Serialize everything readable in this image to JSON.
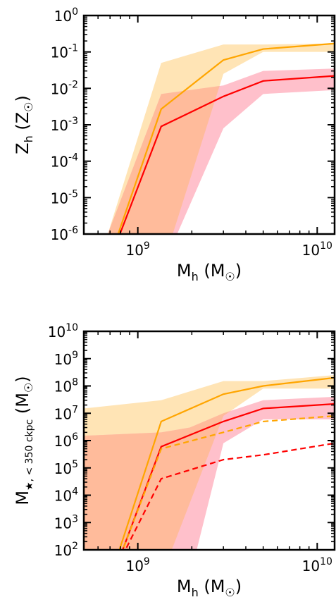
{
  "chart_data": [
    {
      "type": "line",
      "xscale": "log",
      "yscale": "log",
      "xlim": [
        500000000,
        12500000000
      ],
      "ylim": [
        1e-06,
        1
      ],
      "xlabel": "M_h (M_☉)",
      "ylabel": "Z_h (Z_☉)",
      "ytick_exponents": [
        "0",
        "-1",
        "-2",
        "-3",
        "-4",
        "-5",
        "-6"
      ],
      "yticks": [
        1,
        0.1,
        0.01,
        0.001,
        0.0001,
        1e-05,
        1e-06
      ],
      "xtick_exponents": [
        "9",
        "10"
      ],
      "xticks": [
        1000000000,
        10000000000
      ],
      "series": [
        {
          "color": "#ffa500",
          "style": "solid",
          "x": [
            740000000,
            1350000000,
            3000000000,
            5000000000,
            12500000000
          ],
          "y": [
            5e-07,
            0.0027,
            0.06,
            0.12,
            0.17
          ]
        },
        {
          "color": "#ff0000",
          "style": "solid",
          "x": [
            740000000,
            1350000000,
            3000000000,
            5000000000,
            12500000000
          ],
          "y": [
            4e-07,
            0.0009,
            0.006,
            0.016,
            0.022
          ]
        }
      ],
      "bands": [
        {
          "color": "#ffe4b5",
          "x": [
            680000000,
            1350000000,
            3000000000,
            5000000000,
            12500000000
          ],
          "lower": [
            1e-07,
            1e-07,
            0.025,
            0.1,
            0.1
          ],
          "upper": [
            1e-06,
            0.05,
            0.16,
            0.16,
            0.17
          ]
        },
        {
          "color": "#ffc0cb",
          "x": [
            680000000,
            1350000000,
            3000000000,
            5000000000,
            12500000000
          ],
          "lower": [
            1e-07,
            1e-07,
            0.0008,
            0.007,
            0.009
          ],
          "upper": [
            1e-06,
            0.007,
            0.012,
            0.03,
            0.035
          ]
        }
      ],
      "overlap_color": "#ffbb9b"
    },
    {
      "type": "line",
      "xscale": "log",
      "yscale": "log",
      "xlim": [
        500000000,
        12500000000
      ],
      "ylim": [
        100,
        10000000000
      ],
      "xlabel": "M_h (M_☉)",
      "ylabel": "M_★,<350 ckpc (M_☉)",
      "ytick_exponents": [
        "10",
        "9",
        "8",
        "7",
        "6",
        "5",
        "4",
        "3",
        "2"
      ],
      "yticks": [
        10000000000,
        1000000000,
        100000000,
        10000000,
        1000000,
        100000,
        10000,
        1000,
        100
      ],
      "xtick_exponents": [
        "9",
        "10"
      ],
      "xticks": [
        1000000000,
        10000000000
      ],
      "series": [
        {
          "color": "#ffa500",
          "style": "solid",
          "x": [
            770000000,
            1350000000,
            3000000000,
            5000000000,
            12500000000
          ],
          "y": [
            60,
            5000000,
            50000000,
            100000000,
            200000000
          ]
        },
        {
          "color": "#ff0000",
          "style": "solid",
          "x": [
            800000000,
            1350000000,
            3000000000,
            5000000000,
            12500000000
          ],
          "y": [
            60,
            600000,
            5000000,
            15000000,
            22000000
          ]
        },
        {
          "color": "#ffa500",
          "style": "dashed",
          "x": [
            800000000,
            1350000000,
            3000000000,
            5000000000,
            12500000000
          ],
          "y": [
            60,
            500000,
            2000000,
            5000000,
            8000000
          ]
        },
        {
          "color": "#ff0000",
          "style": "dashed",
          "x": [
            820000000,
            1350000000,
            3000000000,
            5000000000,
            12500000000
          ],
          "y": [
            60,
            40000,
            200000,
            300000,
            800000
          ]
        }
      ],
      "bands": [
        {
          "color": "#ffe4b5",
          "x": [
            500000000,
            1350000000,
            3000000000,
            5000000000,
            12500000000
          ],
          "lower": [
            10,
            10,
            8000000,
            80000000,
            80000000
          ],
          "upper": [
            15000000,
            30000000,
            150000000,
            150000000,
            250000000
          ]
        },
        {
          "color": "#ffc0cb",
          "x": [
            500000000,
            1350000000,
            1950000000,
            3000000000,
            5000000000,
            12500000000
          ],
          "lower": [
            10,
            10,
            10,
            800000,
            6000000,
            6000000
          ],
          "upper": [
            1500000,
            2000000,
            3000000,
            10000000,
            30000000,
            40000000
          ]
        }
      ],
      "overlap_color": "#ffbb9b"
    }
  ]
}
